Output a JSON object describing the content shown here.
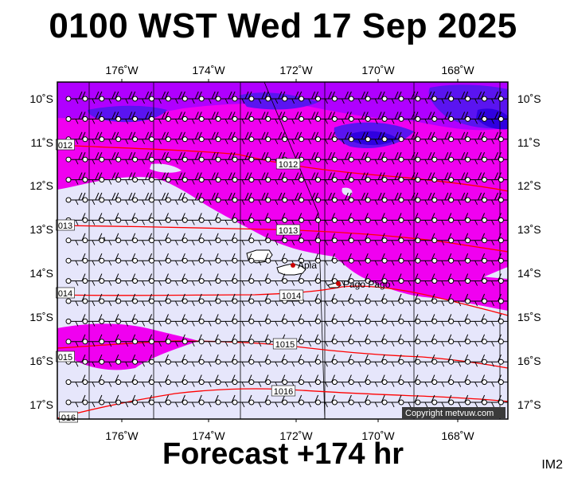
{
  "header": {
    "title": "0100 WST Wed 17 Sep 2025"
  },
  "footer": {
    "forecast_label": "Forecast +174 hr",
    "image_tag": "IM2"
  },
  "copyright": "Copyright metvuw.com",
  "colors": {
    "ocean_background": "#e6e6fb",
    "wind_band_magenta": "#f000f0",
    "wind_band_purple": "#b000ff",
    "wind_band_blue": "#5a14f0",
    "wind_band_deep": "#3000e0",
    "isobar": "#ff0000",
    "grid": "#000000"
  },
  "axes": {
    "longitude_ticks": [
      "176˚W",
      "174˚W",
      "172˚W",
      "170˚W",
      "168˚W"
    ],
    "latitude_ticks": [
      "10˚S",
      "11˚S",
      "12˚S",
      "13˚S",
      "14˚S",
      "15˚S",
      "16˚S",
      "17˚S"
    ]
  },
  "isobars": [
    {
      "value": "1012",
      "labels": [
        "012",
        "1012"
      ]
    },
    {
      "value": "1013",
      "labels": [
        "013",
        "1013"
      ]
    },
    {
      "value": "1014",
      "labels": [
        "014",
        "1014"
      ]
    },
    {
      "value": "1015",
      "labels": [
        "015",
        "1015"
      ]
    },
    {
      "value": "1016",
      "labels": [
        "016",
        "1016"
      ]
    }
  ],
  "places": [
    {
      "name": "Apia",
      "marker_color": "#cc0000"
    },
    {
      "name": "Pago Pago",
      "marker_color": "#cc0000"
    }
  ],
  "wind_field": {
    "symbol": "barb",
    "station_marker": "circle",
    "rows": 16,
    "cols": 27
  }
}
